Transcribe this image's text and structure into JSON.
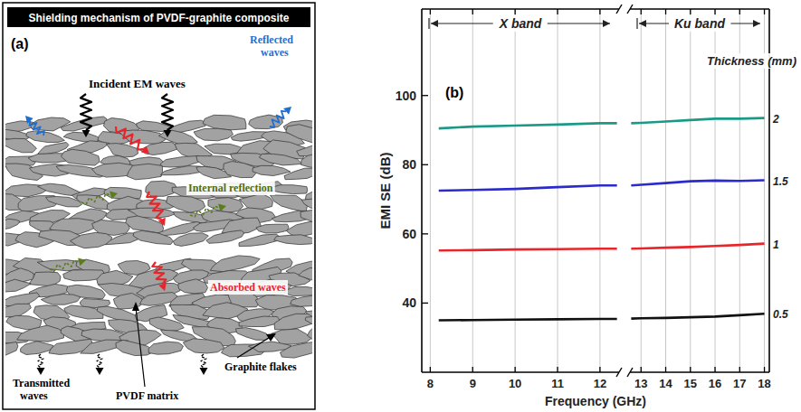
{
  "diagram": {
    "panel_label": "(a)",
    "title": "Shielding mechanism of PVDF-graphite composite",
    "labels": {
      "incident": "Incident EM waves",
      "reflected": "Reflected waves",
      "internal": "Internal reflection",
      "absorbed": "Absorbed waves",
      "transmitted": "Transmitted waves",
      "matrix": "PVDF matrix",
      "flakes": "Graphite flakes"
    }
  },
  "chart_data": [
    {
      "type": "line",
      "panel_label": "(b)",
      "ylabel": "EMI SE (dB)",
      "xlabel": "Frequency (GHz)",
      "annotation": "X band",
      "x": [
        8.2,
        9,
        10,
        11,
        12,
        12.4
      ],
      "xlim": [
        7.8,
        12.45
      ],
      "xticks": [
        8,
        9,
        10,
        11,
        12
      ],
      "ylim": [
        20,
        125
      ],
      "yticks": [
        40,
        60,
        80,
        100
      ],
      "grid": true,
      "series": [
        {
          "color": "#1b9987",
          "values": [
            90.5,
            91,
            91.3,
            91.6,
            92,
            92
          ]
        },
        {
          "color": "#2b2bcc",
          "values": [
            72.5,
            72.7,
            73,
            73.5,
            74,
            74
          ]
        },
        {
          "color": "#e8252a",
          "values": [
            55.2,
            55.3,
            55.5,
            55.6,
            55.7,
            55.7
          ]
        },
        {
          "color": "#111111",
          "values": [
            35,
            35.1,
            35.2,
            35.3,
            35.4,
            35.4
          ]
        }
      ]
    },
    {
      "type": "line",
      "annotation": "Ku band",
      "legend_title": "Thickness (mm)",
      "x": [
        12.6,
        13,
        14,
        15,
        16,
        17,
        18
      ],
      "xlim": [
        12.55,
        18.2
      ],
      "xticks": [
        13,
        14,
        15,
        16,
        17,
        18
      ],
      "ylim": [
        20,
        125
      ],
      "grid": true,
      "series": [
        {
          "name": "2",
          "color": "#1b9987",
          "values": [
            92,
            92.1,
            92.5,
            92.9,
            93.3,
            93.3,
            93.5
          ]
        },
        {
          "name": "1.5",
          "color": "#2b2bcc",
          "values": [
            74,
            74.2,
            74.7,
            75.2,
            75.4,
            75.3,
            75.5
          ]
        },
        {
          "name": "1",
          "color": "#e8252a",
          "values": [
            55.7,
            55.8,
            56,
            56.2,
            56.5,
            56.8,
            57.2
          ]
        },
        {
          "name": "0.5",
          "color": "#111111",
          "values": [
            35.5,
            35.6,
            35.7,
            35.9,
            36.1,
            36.5,
            36.9
          ]
        }
      ]
    }
  ]
}
